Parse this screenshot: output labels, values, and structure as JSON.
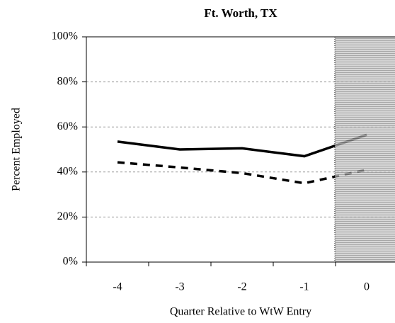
{
  "chart_data": {
    "type": "line",
    "title": "Ft. Worth, TX",
    "x_label": "Quarter Relative to WtW Entry",
    "y_label": "Percent Employed",
    "categories": [
      "-4",
      "-3",
      "-2",
      "-1",
      "0"
    ],
    "series": [
      {
        "color": "#000000",
        "dash": "solid",
        "values": [
          53.5,
          50,
          50.5,
          47,
          56.5
        ]
      },
      {
        "color": "#000000",
        "dash": "dashed",
        "values": [
          44.3,
          42,
          39.5,
          35,
          41
        ]
      }
    ],
    "ylim": [
      0,
      100
    ],
    "yticks": [
      {
        "value": 0,
        "label": "0%"
      },
      {
        "value": 20,
        "label": "20%"
      },
      {
        "value": 40,
        "label": "40%"
      },
      {
        "value": 60,
        "label": "60%"
      },
      {
        "value": 80,
        "label": "80%"
      },
      {
        "value": 100,
        "label": "100%"
      }
    ],
    "grid": true
  }
}
